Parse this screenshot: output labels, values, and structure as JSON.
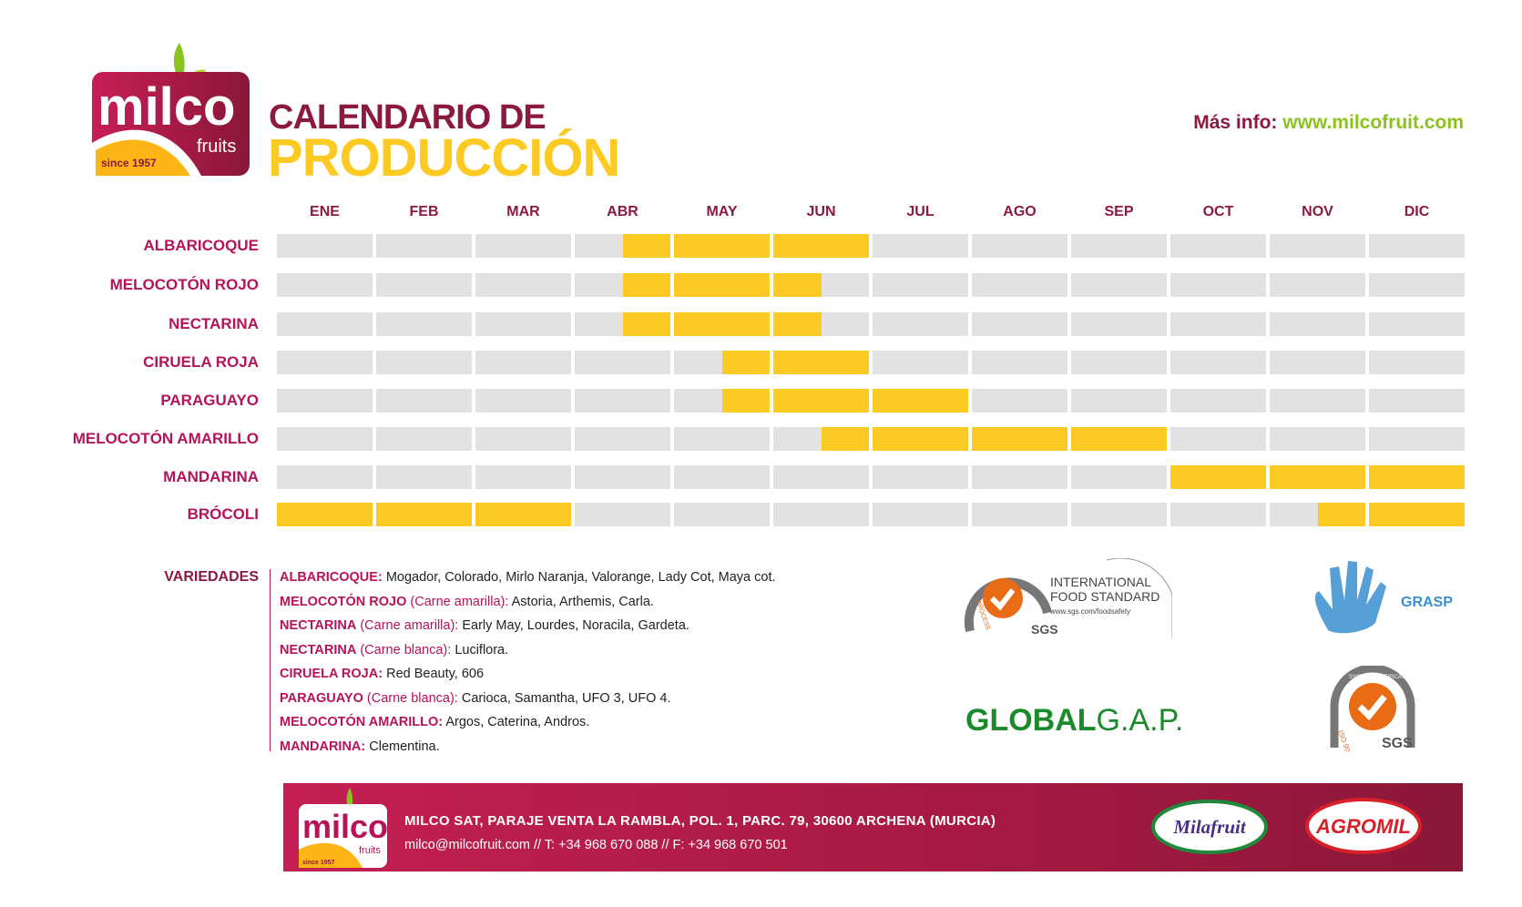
{
  "brand": {
    "name": "milco",
    "sub": "fruits",
    "since": "since 1957"
  },
  "header": {
    "title_line1": "CALENDARIO DE",
    "title_line2": "PRODUCCIÓN",
    "info_label": "Más info:",
    "info_url": "www.milcofruit.com"
  },
  "colors": {
    "active": "#fdc923",
    "inactive": "#e2e2e2",
    "label": "#b5135a",
    "title": "#8b1a3d",
    "accent_green": "#8cc21f"
  },
  "calendar": {
    "months": [
      "ENE",
      "FEB",
      "MAR",
      "ABR",
      "MAY",
      "JUN",
      "JUL",
      "AGO",
      "SEP",
      "OCT",
      "NOV",
      "DIC"
    ],
    "note": "",
    "rows": [
      {
        "product": "ALBARICOQUE",
        "active_half_months": [
          0,
          0,
          0,
          0,
          0,
          0,
          0,
          1,
          1,
          1,
          1,
          1,
          0,
          0,
          0,
          0,
          0,
          0,
          0,
          0,
          0,
          0,
          0,
          0
        ]
      },
      {
        "product": "MELOCOTÓN ROJO",
        "active_half_months": [
          0,
          0,
          0,
          0,
          0,
          0,
          0,
          1,
          1,
          1,
          1,
          0,
          0,
          0,
          0,
          0,
          0,
          0,
          0,
          0,
          0,
          0,
          0,
          0
        ]
      },
      {
        "product": "NECTARINA",
        "active_half_months": [
          0,
          0,
          0,
          0,
          0,
          0,
          0,
          1,
          1,
          1,
          1,
          0,
          0,
          0,
          0,
          0,
          0,
          0,
          0,
          0,
          0,
          0,
          0,
          0
        ]
      },
      {
        "product": "CIRUELA ROJA",
        "active_half_months": [
          0,
          0,
          0,
          0,
          0,
          0,
          0,
          0,
          0,
          1,
          1,
          1,
          0,
          0,
          0,
          0,
          0,
          0,
          0,
          0,
          0,
          0,
          0,
          0
        ]
      },
      {
        "product": "PARAGUAYO",
        "active_half_months": [
          0,
          0,
          0,
          0,
          0,
          0,
          0,
          0,
          0,
          1,
          1,
          1,
          1,
          1,
          0,
          0,
          0,
          0,
          0,
          0,
          0,
          0,
          0,
          0
        ]
      },
      {
        "product": "MELOCOTÓN AMARILLO",
        "active_half_months": [
          0,
          0,
          0,
          0,
          0,
          0,
          0,
          0,
          0,
          0,
          0,
          1,
          1,
          1,
          1,
          1,
          1,
          1,
          0,
          0,
          0,
          0,
          0,
          0
        ]
      },
      {
        "product": "MANDARINA",
        "active_half_months": [
          0,
          0,
          0,
          0,
          0,
          0,
          0,
          0,
          0,
          0,
          0,
          0,
          0,
          0,
          0,
          0,
          0,
          0,
          1,
          1,
          1,
          1,
          1,
          1
        ]
      },
      {
        "product": "BRÓCOLI",
        "active_half_months": [
          1,
          1,
          1,
          1,
          1,
          1,
          0,
          0,
          0,
          0,
          0,
          0,
          0,
          0,
          0,
          0,
          0,
          0,
          0,
          0,
          0,
          1,
          1,
          1
        ]
      }
    ]
  },
  "varieties": {
    "title": "VARIEDADES",
    "items": [
      {
        "name": "ALBARICOQUE:",
        "qualifier": "",
        "list": "Mogador, Colorado, Mirlo Naranja, Valorange, Lady Cot, Maya cot."
      },
      {
        "name": "MELOCOTÓN ROJO",
        "qualifier": "(Carne amarilla):",
        "list": "Astoria, Arthemis, Carla."
      },
      {
        "name": "NECTARINA",
        "qualifier": "(Carne amarilla):",
        "list": "Early May, Lourdes, Noracila, Gardeta."
      },
      {
        "name": "NECTARINA",
        "qualifier": "(Carne blanca):",
        "list": "Luciflora."
      },
      {
        "name": "CIRUELA ROJA:",
        "qualifier": "",
        "list": "Red Beauty, 606"
      },
      {
        "name": "PARAGUAYO",
        "qualifier": "(Carne blanca):",
        "list": "Carioca, Samantha, UFO 3, UFO 4."
      },
      {
        "name": "MELOCOTÓN AMARILLO:",
        "qualifier": "",
        "list": "Argos, Caterina, Andros."
      },
      {
        "name": "MANDARINA:",
        "qualifier": "",
        "list": "Clementina."
      }
    ]
  },
  "certifications": {
    "ifs": {
      "line1": "INTERNATIONAL",
      "line2": "FOOD STANDARD",
      "url": "www.sgs.com/foodsafety",
      "badge": "SGS",
      "ring": "PROCESS"
    },
    "grasp": "GRASP",
    "globalgap": {
      "bold": "GLOBAL",
      "light": "G.A.P."
    },
    "iso": {
      "badge": "SGS",
      "ring": "SYSTEM CERTIFICATION",
      "std": "ISO 9001"
    }
  },
  "footer": {
    "address": "MILCO SAT, PARAJE VENTA LA RAMBLA, POL. 1, PARC. 79, 30600 ARCHENA (MURCIA)",
    "contact": "milco@milcofruit.com // T: +34 968 670 088 // F: +34 968 670 501",
    "brand1": "Milafruit",
    "brand2": "AGROMIL"
  }
}
